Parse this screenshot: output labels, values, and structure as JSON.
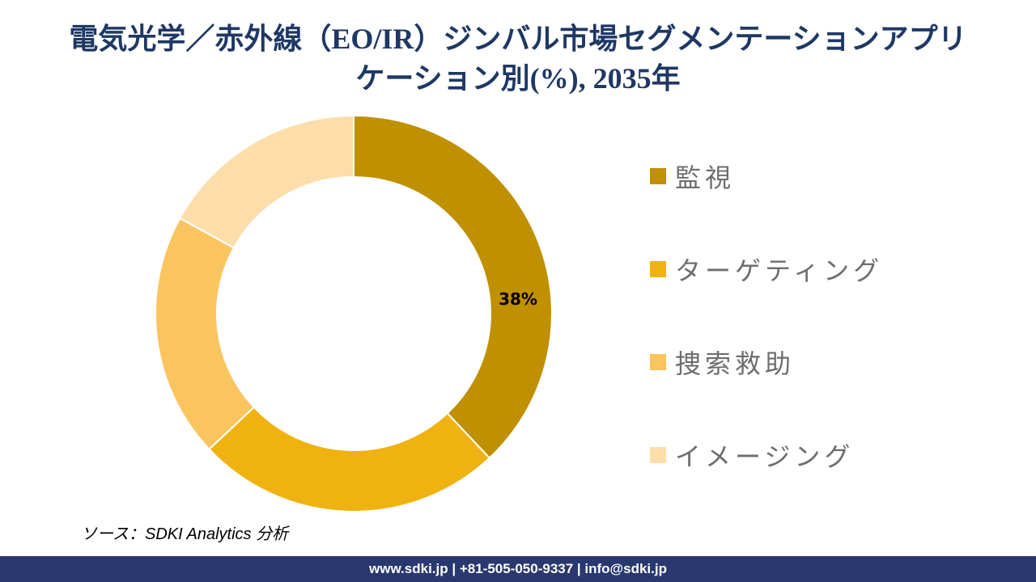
{
  "title": {
    "line1": "電気光学／赤外線（EO/IR）ジンバル市場セグメンテーションアプリ",
    "line2": "ケーション別(%), 2035年",
    "full": "電気光学／赤外線（EO/IR）ジンバル市場セグメンテーションアプリケーション別(%), 2035年"
  },
  "chart_data": {
    "type": "pie",
    "subtype": "doughnut",
    "title": "電気光学／赤外線（EO/IR）ジンバル市場セグメンテーションアプリケーション別(%), 2035年",
    "unit": "%",
    "categories": [
      "監視",
      "ターゲティング",
      "捜索救助",
      "イメージング"
    ],
    "values": [
      38,
      25,
      20,
      17
    ],
    "colors": [
      "#BF9000",
      "#EFB211",
      "#FAC45F",
      "#FDDEAA"
    ],
    "data_labels": [
      "38%",
      "",
      "",
      ""
    ],
    "start_angle_deg": 0,
    "direction": "clockwise",
    "inner_radius_ratio": 0.69,
    "legend_position": "right"
  },
  "legend": {
    "items": [
      {
        "label": "監視",
        "color": "#BF9000"
      },
      {
        "label": "ターゲティング",
        "color": "#EFB211"
      },
      {
        "label": "捜索救助",
        "color": "#FAC45F"
      },
      {
        "label": "イメージング",
        "color": "#FDDEAA"
      }
    ]
  },
  "source": {
    "text": "ソース：SDKI Analytics 分析"
  },
  "footer": {
    "text": "www.sdki.jp | +81-505-050-9337 | info@sdki.jp"
  }
}
